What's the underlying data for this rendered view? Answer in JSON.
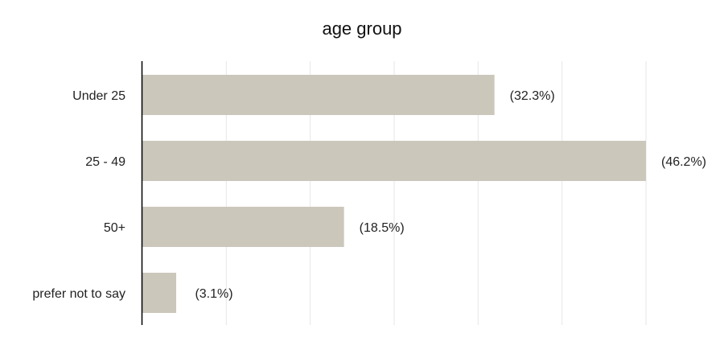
{
  "chart_data": {
    "type": "bar",
    "orientation": "horizontal",
    "title": "age group",
    "categories": [
      "Under 25",
      "25 - 49",
      "50+",
      "prefer not to say"
    ],
    "values": [
      32.3,
      46.2,
      18.5,
      3.1
    ],
    "data_labels": [
      "(32.3%)",
      "(46.2%)",
      "(18.5%)",
      "(3.1%)"
    ],
    "xlabel": "",
    "ylabel": "",
    "xlim": [
      0,
      46.2
    ],
    "grid": true,
    "legend": "none",
    "colors": {
      "bar": "#cbc7bb",
      "axis": "#000000",
      "grid": "#e6e6e6",
      "text": "#222222"
    }
  }
}
